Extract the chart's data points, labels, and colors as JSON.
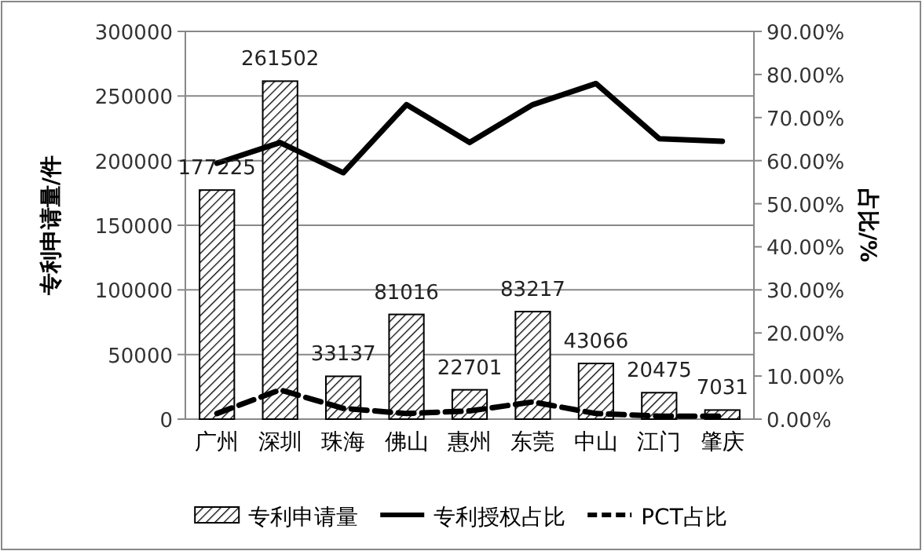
{
  "chart_data": {
    "type": "bar",
    "categories": [
      "广州",
      "深圳",
      "珠海",
      "佛山",
      "惠州",
      "东莞",
      "中山",
      "江门",
      "肇庆"
    ],
    "ylabel": "专利申请量/件",
    "y2label": "占比/%",
    "ylim": [
      0,
      300000
    ],
    "yticks": [
      0,
      50000,
      100000,
      150000,
      200000,
      250000,
      300000
    ],
    "y2lim": [
      0,
      90
    ],
    "y2ticks": [
      {
        "value": 0,
        "label": "0.00%"
      },
      {
        "value": 10,
        "label": "10.00%"
      },
      {
        "value": 20,
        "label": "20.00%"
      },
      {
        "value": 30,
        "label": "30.00%"
      },
      {
        "value": 40,
        "label": "40.00%"
      },
      {
        "value": 50,
        "label": "50.00%"
      },
      {
        "value": 60,
        "label": "60.00%"
      },
      {
        "value": 70,
        "label": "70.00%"
      },
      {
        "value": 80,
        "label": "80.00%"
      },
      {
        "value": 90,
        "label": "90.00%"
      }
    ],
    "grid": "y",
    "legend": "bottom",
    "series": [
      {
        "name": "专利申请量",
        "color": "#000000",
        "values": [
          177225,
          261502,
          33137,
          81016,
          22701,
          83217,
          43066,
          20475,
          7031
        ],
        "value_labels": [
          "177225",
          "261502",
          "33137",
          "81016",
          "22701",
          "83217",
          "43066",
          "20475",
          "7031"
        ]
      },
      {
        "name": "专利授权占比",
        "type": "line",
        "axis": "y2",
        "color": "#000000",
        "line_style": "solid",
        "values": [
          59.4,
          64.2,
          57.2,
          73.0,
          64.2,
          73.0,
          77.9,
          65.1,
          64.5
        ]
      },
      {
        "name": "PCT占比",
        "type": "line",
        "axis": "y2",
        "color": "#000000",
        "line_style": "dashed",
        "values": [
          1.3,
          6.8,
          2.5,
          1.3,
          1.9,
          4.0,
          1.3,
          0.7,
          0.7
        ]
      }
    ]
  }
}
